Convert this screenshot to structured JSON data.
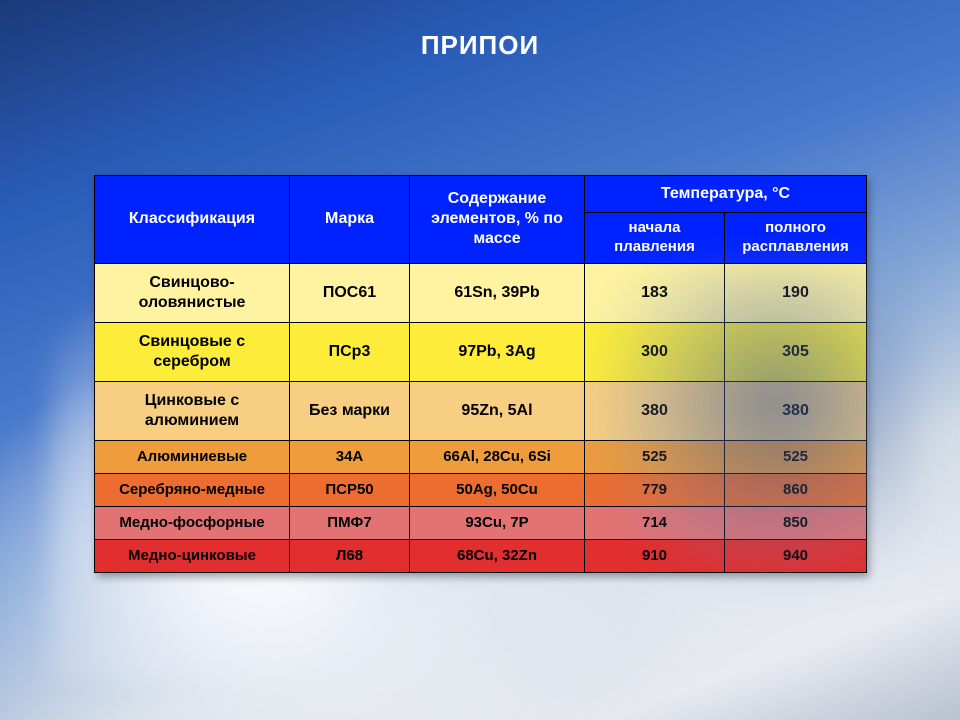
{
  "slide": {
    "title": "ПРИПОИ"
  },
  "table": {
    "header": {
      "bg_color": "#0022ff",
      "text_color": "#ffffff",
      "classification": "Классификация",
      "brand": "Марка",
      "elements": "Содержание элементов, % по массе",
      "temp_group": "Температура, °С",
      "temp_start": "начала плавления",
      "temp_full": "полного расплавления"
    },
    "body_text_color": "#000000",
    "rows": [
      {
        "bg_color": "#fff3a1",
        "height": "tall",
        "classification": "Свинцово-оловянистые",
        "brand": "ПОС61",
        "elements": "61Sn, 39Pb",
        "temp_start": "183",
        "temp_full": "190"
      },
      {
        "bg_color": "#fded3a",
        "height": "tall",
        "classification": "Свинцовые с серебром",
        "brand": "ПСр3",
        "elements": "97Pb,  3Ag",
        "temp_start": "300",
        "temp_full": "305"
      },
      {
        "bg_color": "#f8cf82",
        "height": "tall",
        "classification": "Цинковые с алюминием",
        "brand": "Без марки",
        "elements": "95Zn,  5Al",
        "temp_start": "380",
        "temp_full": "380"
      },
      {
        "bg_color": "#ef9c3d",
        "height": "short",
        "classification": "Алюминиевые",
        "brand": "34А",
        "elements": "66Al,  28Cu, 6Si",
        "temp_start": "525",
        "temp_full": "525"
      },
      {
        "bg_color": "#ec6d2f",
        "height": "short",
        "classification": "Серебряно-медные",
        "brand": "ПСР50",
        "elements": "50Ag, 50Cu",
        "temp_start": "779",
        "temp_full": "860"
      },
      {
        "bg_color": "#e37373",
        "height": "short",
        "classification": "Медно-фосфорные",
        "brand": "ПМФ7",
        "elements": "93Cu,  7P",
        "temp_start": "714",
        "temp_full": "850"
      },
      {
        "bg_color": "#e22e2e",
        "height": "short",
        "classification": "Медно-цинковые",
        "brand": "Л68",
        "elements": "68Cu, 32Zn",
        "temp_start": "910",
        "temp_full": "940"
      }
    ]
  }
}
